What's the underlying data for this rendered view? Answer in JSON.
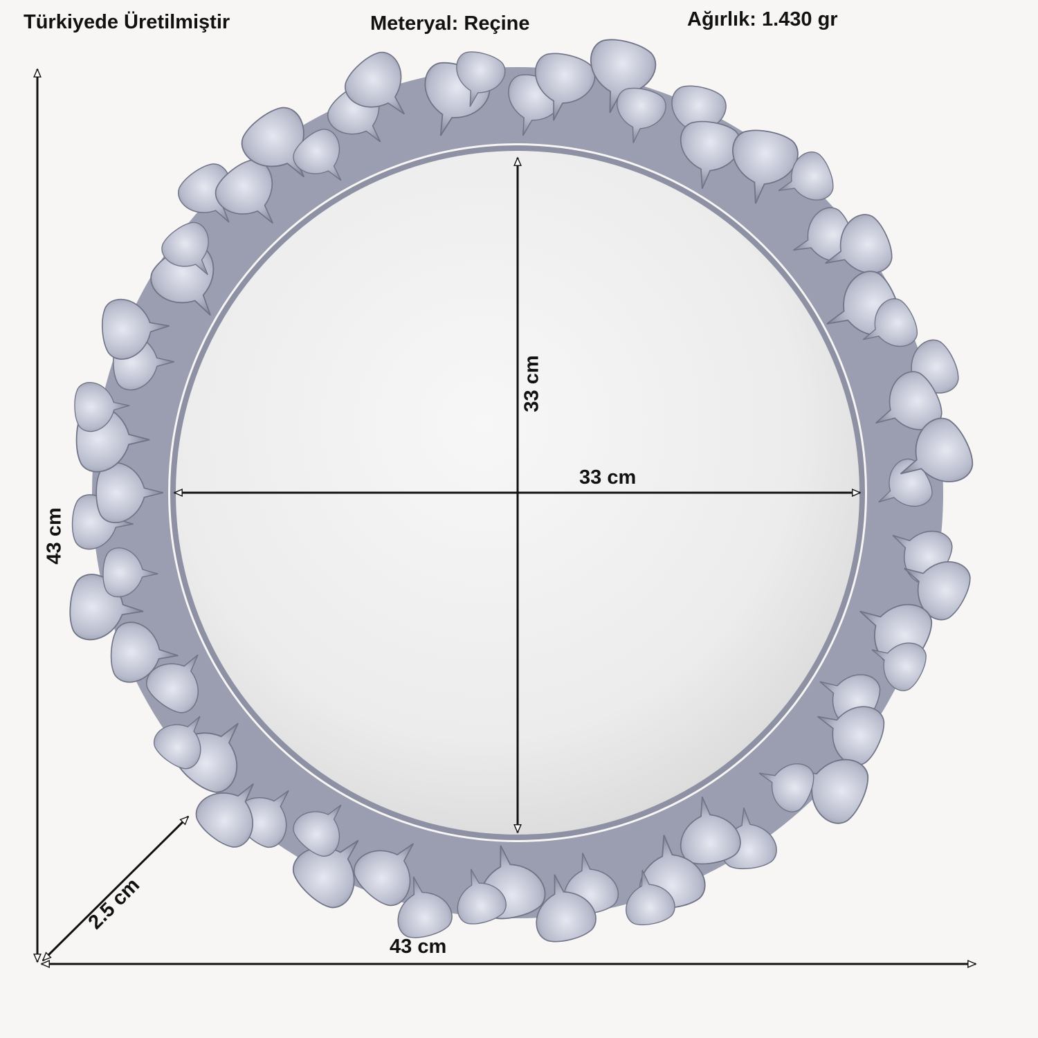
{
  "header": {
    "origin": "Türkiyede Üretilmiştir",
    "material": "Meteryal: Reçine",
    "weight": "Ağırlık: 1.430 gr"
  },
  "dimensions": {
    "inner_height": "33 cm",
    "inner_width": "33 cm",
    "outer_height": "43 cm",
    "outer_width": "43 cm",
    "depth": "2.5 cm"
  },
  "colors": {
    "background": "#f7f6f4",
    "frame_silver": "#b9bccb",
    "frame_shadow": "#7c8092",
    "glass": "#eeeeee",
    "arrows": "#111111"
  }
}
